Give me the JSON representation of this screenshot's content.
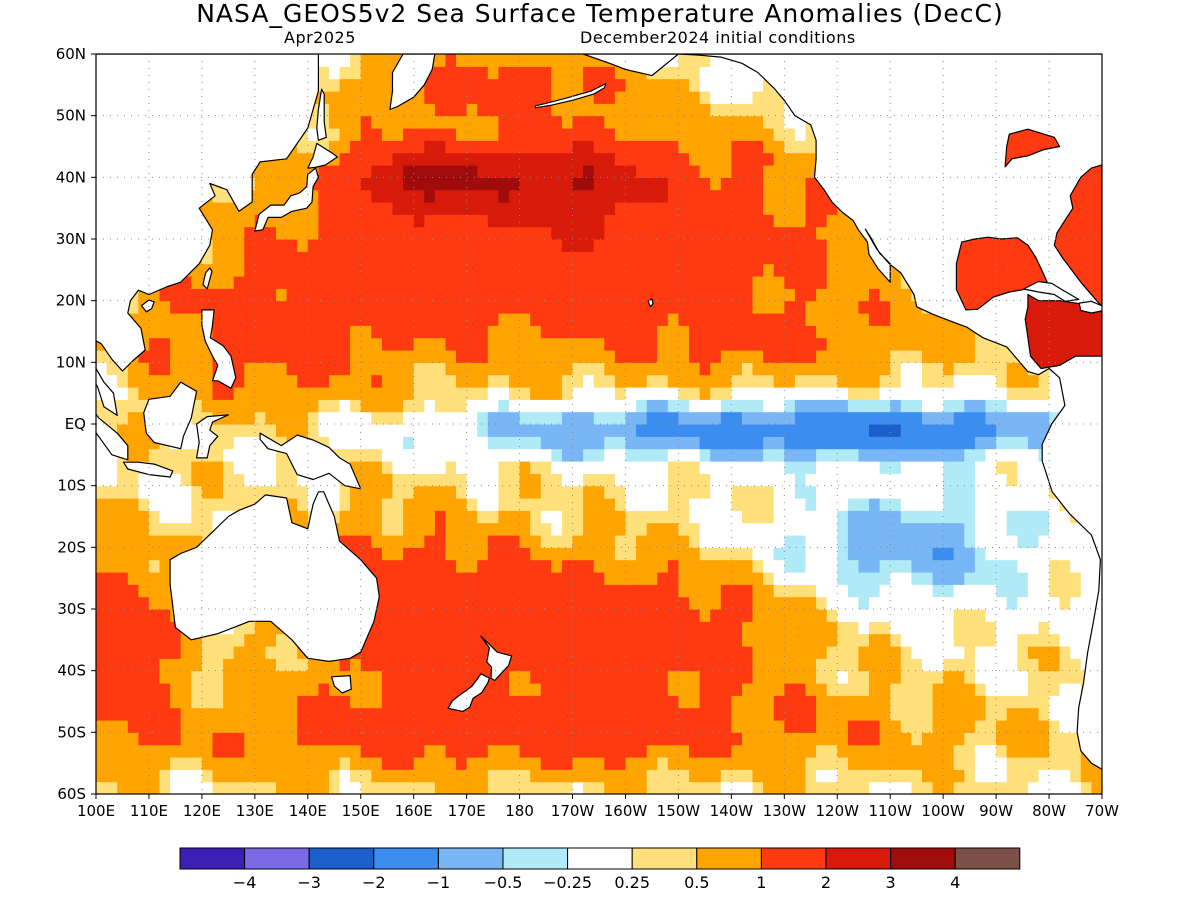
{
  "title": "NASA_GEOS5v2 Sea Surface Temperature Anomalies (DecC)",
  "subtitle_left": "Apr2025",
  "subtitle_right": "December2024 initial conditions",
  "colors": {
    "land": "#ffffff",
    "coast": "#000000",
    "grid": "#8a8a8a"
  },
  "map": {
    "lon_range": [
      100,
      290
    ],
    "lat_range": [
      -60,
      60
    ],
    "lon_ticks": [
      {
        "lon": 100,
        "label": "100E"
      },
      {
        "lon": 110,
        "label": "110E"
      },
      {
        "lon": 120,
        "label": "120E"
      },
      {
        "lon": 130,
        "label": "130E"
      },
      {
        "lon": 140,
        "label": "140E"
      },
      {
        "lon": 150,
        "label": "150E"
      },
      {
        "lon": 160,
        "label": "160E"
      },
      {
        "lon": 170,
        "label": "170E"
      },
      {
        "lon": 180,
        "label": "180"
      },
      {
        "lon": 190,
        "label": "170W"
      },
      {
        "lon": 200,
        "label": "160W"
      },
      {
        "lon": 210,
        "label": "150W"
      },
      {
        "lon": 220,
        "label": "140W"
      },
      {
        "lon": 230,
        "label": "130W"
      },
      {
        "lon": 240,
        "label": "120W"
      },
      {
        "lon": 250,
        "label": "110W"
      },
      {
        "lon": 260,
        "label": "100W"
      },
      {
        "lon": 270,
        "label": "90W"
      },
      {
        "lon": 280,
        "label": "80W"
      },
      {
        "lon": 290,
        "label": "70W"
      }
    ],
    "lat_ticks": [
      {
        "lat": 60,
        "label": "60N"
      },
      {
        "lat": 50,
        "label": "50N"
      },
      {
        "lat": 40,
        "label": "40N"
      },
      {
        "lat": 30,
        "label": "30N"
      },
      {
        "lat": 20,
        "label": "20N"
      },
      {
        "lat": 10,
        "label": "10N"
      },
      {
        "lat": 0,
        "label": "EQ"
      },
      {
        "lat": -10,
        "label": "10S"
      },
      {
        "lat": -20,
        "label": "20S"
      },
      {
        "lat": -30,
        "label": "30S"
      },
      {
        "lat": -40,
        "label": "40S"
      },
      {
        "lat": -50,
        "label": "50S"
      },
      {
        "lat": -60,
        "label": "60S"
      }
    ]
  },
  "colorbar": {
    "colors": [
      "#3c1fb4",
      "#7a6ae6",
      "#1a5fcc",
      "#3b8ef0",
      "#78b6f5",
      "#b0eaf6",
      "#ffffff",
      "#ffe07a",
      "#ffa400",
      "#ff3a10",
      "#d81a0a",
      "#a00c0c",
      "#7a5048"
    ],
    "labels": [
      "−4",
      "−3",
      "−2",
      "−1",
      "−0.5",
      "−0.25",
      "0.25",
      "0.5",
      "1",
      "2",
      "3",
      "4"
    ]
  },
  "field": {
    "levels": [
      -4,
      -3,
      -2,
      -1,
      -0.5,
      -0.25,
      0.25,
      0.5,
      1,
      2,
      3,
      4
    ],
    "features": [
      {
        "region": "subtropical-north-pacific-warm",
        "lon": 190,
        "lat": 30,
        "rlon": 55,
        "rlat": 17,
        "amp": 1.6
      },
      {
        "region": "kuroshio-extension-warm",
        "lon": 163,
        "lat": 40,
        "rlon": 14,
        "rlat": 5,
        "amp": 2.4
      },
      {
        "region": "central-north-pacific-warm",
        "lon": 190,
        "lat": 40,
        "rlon": 14,
        "rlat": 6,
        "amp": 1.6
      },
      {
        "region": "western-tropical-warm",
        "lon": 132,
        "lat": 14,
        "rlon": 28,
        "rlat": 12,
        "amp": 0.9
      },
      {
        "region": "northeast-tropical-warm",
        "lon": 230,
        "lat": 13,
        "rlon": 28,
        "rlat": 6,
        "amp": 0.6
      },
      {
        "region": "equatorial-cold-tongue",
        "lon": 225,
        "lat": -1,
        "rlon": 55,
        "rlat": 4.5,
        "amp": -1.6
      },
      {
        "region": "eastern-equatorial-cold",
        "lon": 255,
        "lat": -1,
        "rlon": 18,
        "rlat": 3.5,
        "amp": -0.9
      },
      {
        "region": "southeast-pacific-cold",
        "lon": 252,
        "lat": -20,
        "rlon": 25,
        "rlat": 9,
        "amp": -1.1
      },
      {
        "region": "australia-east-warm",
        "lon": 160,
        "lat": -30,
        "rlon": 25,
        "rlat": 14,
        "amp": 1.3
      },
      {
        "region": "south-central-pacific-warm",
        "lon": 205,
        "lat": -33,
        "rlon": 30,
        "rlat": 12,
        "amp": 1.2
      },
      {
        "region": "southern-ocean-warm",
        "lon": 180,
        "lat": -50,
        "rlon": 80,
        "rlat": 7,
        "amp": 1.0
      },
      {
        "region": "indian-ocean-west-warm",
        "lon": 105,
        "lat": -35,
        "rlon": 10,
        "rlat": 15,
        "amp": 1.3
      },
      {
        "region": "north-pacific-high-lat-warm",
        "lon": 175,
        "lat": 55,
        "rlon": 25,
        "rlat": 5,
        "amp": 1.0
      },
      {
        "region": "alaska-coast-cold",
        "lon": 225,
        "lat": 57,
        "rlon": 10,
        "rlat": 4,
        "amp": -0.5
      },
      {
        "region": "gulf-of-mexico-warm",
        "lon": 272,
        "lat": 24,
        "rlon": 8,
        "rlat": 6,
        "amp": 1.7
      },
      {
        "region": "west-atlantic-warm",
        "lon": 288,
        "lat": 32,
        "rlon": 6,
        "rlat": 10,
        "amp": 1.8
      }
    ]
  }
}
